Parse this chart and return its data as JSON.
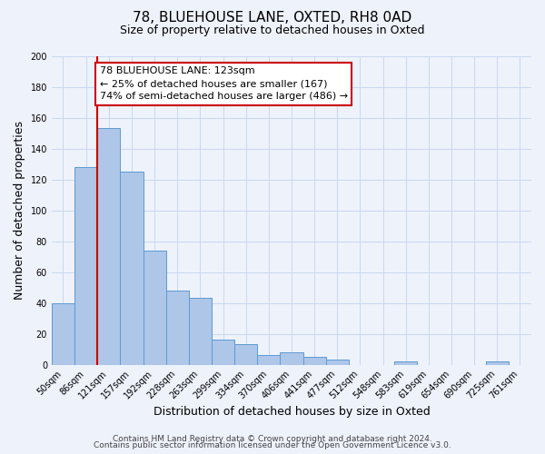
{
  "title": "78, BLUEHOUSE LANE, OXTED, RH8 0AD",
  "subtitle": "Size of property relative to detached houses in Oxted",
  "xlabel": "Distribution of detached houses by size in Oxted",
  "ylabel": "Number of detached properties",
  "bin_labels": [
    "50sqm",
    "86sqm",
    "121sqm",
    "157sqm",
    "192sqm",
    "228sqm",
    "263sqm",
    "299sqm",
    "334sqm",
    "370sqm",
    "406sqm",
    "441sqm",
    "477sqm",
    "512sqm",
    "548sqm",
    "583sqm",
    "619sqm",
    "654sqm",
    "690sqm",
    "725sqm",
    "761sqm"
  ],
  "bar_values": [
    40,
    128,
    153,
    125,
    74,
    48,
    43,
    16,
    13,
    6,
    8,
    5,
    3,
    0,
    0,
    2,
    0,
    0,
    0,
    2,
    0
  ],
  "bar_color": "#aec6e8",
  "bar_edge_color": "#5b9bd5",
  "vline_color": "#cc0000",
  "ylim": [
    0,
    200
  ],
  "yticks": [
    0,
    20,
    40,
    60,
    80,
    100,
    120,
    140,
    160,
    180,
    200
  ],
  "annotation_line1": "78 BLUEHOUSE LANE: 123sqm",
  "annotation_line2": "← 25% of detached houses are smaller (167)",
  "annotation_line3": "74% of semi-detached houses are larger (486) →",
  "footer_line1": "Contains HM Land Registry data © Crown copyright and database right 2024.",
  "footer_line2": "Contains public sector information licensed under the Open Government Licence v3.0.",
  "background_color": "#eef2fb",
  "grid_color": "#c8d8f0",
  "title_fontsize": 11,
  "subtitle_fontsize": 9,
  "axis_label_fontsize": 9,
  "tick_fontsize": 7,
  "annotation_fontsize": 8,
  "footer_fontsize": 6.5
}
